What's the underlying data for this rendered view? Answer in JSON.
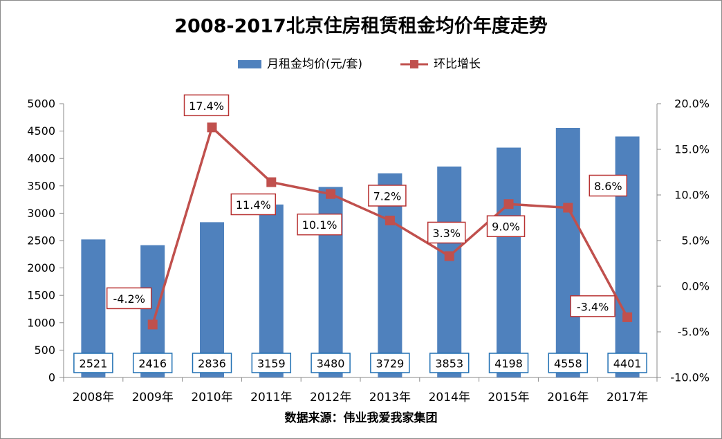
{
  "colors": {
    "bar": "#4F81BD",
    "line": "#C0504D",
    "bar_label_border": "#1F6FB2",
    "line_label_border": "#B83232"
  },
  "chart_data": {
    "type": "bar",
    "title": "2008-2017北京住房租赁租金均价年度走势",
    "source": "数据来源：伟业我爱我家集团",
    "categories": [
      "2008年",
      "2009年",
      "2010年",
      "2011年",
      "2012年",
      "2013年",
      "2014年",
      "2015年",
      "2016年",
      "2017年"
    ],
    "series": [
      {
        "name": "月租金均价(元/套)",
        "type": "bar",
        "axis": "left",
        "values": [
          2521,
          2416,
          2836,
          3159,
          3480,
          3729,
          3853,
          4198,
          4558,
          4401
        ],
        "labels": [
          "2521",
          "2416",
          "2836",
          "3159",
          "3480",
          "3729",
          "3853",
          "4198",
          "4558",
          "4401"
        ]
      },
      {
        "name": "环比增长",
        "type": "line",
        "axis": "right",
        "values": [
          null,
          -4.2,
          17.4,
          11.4,
          10.1,
          7.2,
          3.3,
          9.0,
          8.6,
          -3.4
        ],
        "labels": [
          null,
          "-4.2%",
          "17.4%",
          "11.4%",
          "10.1%",
          "7.2%",
          "3.3%",
          "9.0%",
          "8.6%",
          "-3.4%"
        ]
      }
    ],
    "y_left": {
      "min": 0,
      "max": 5000,
      "ticks": [
        "0",
        "500",
        "1000",
        "1500",
        "2000",
        "2500",
        "3000",
        "3500",
        "4000",
        "4500",
        "5000"
      ]
    },
    "y_right": {
      "min": -10,
      "max": 20,
      "ticks": [
        "-10.0%",
        "-5.0%",
        "0.0%",
        "5.0%",
        "10.0%",
        "15.0%",
        "20.0%"
      ]
    },
    "legend_position": "top",
    "grid": false
  }
}
